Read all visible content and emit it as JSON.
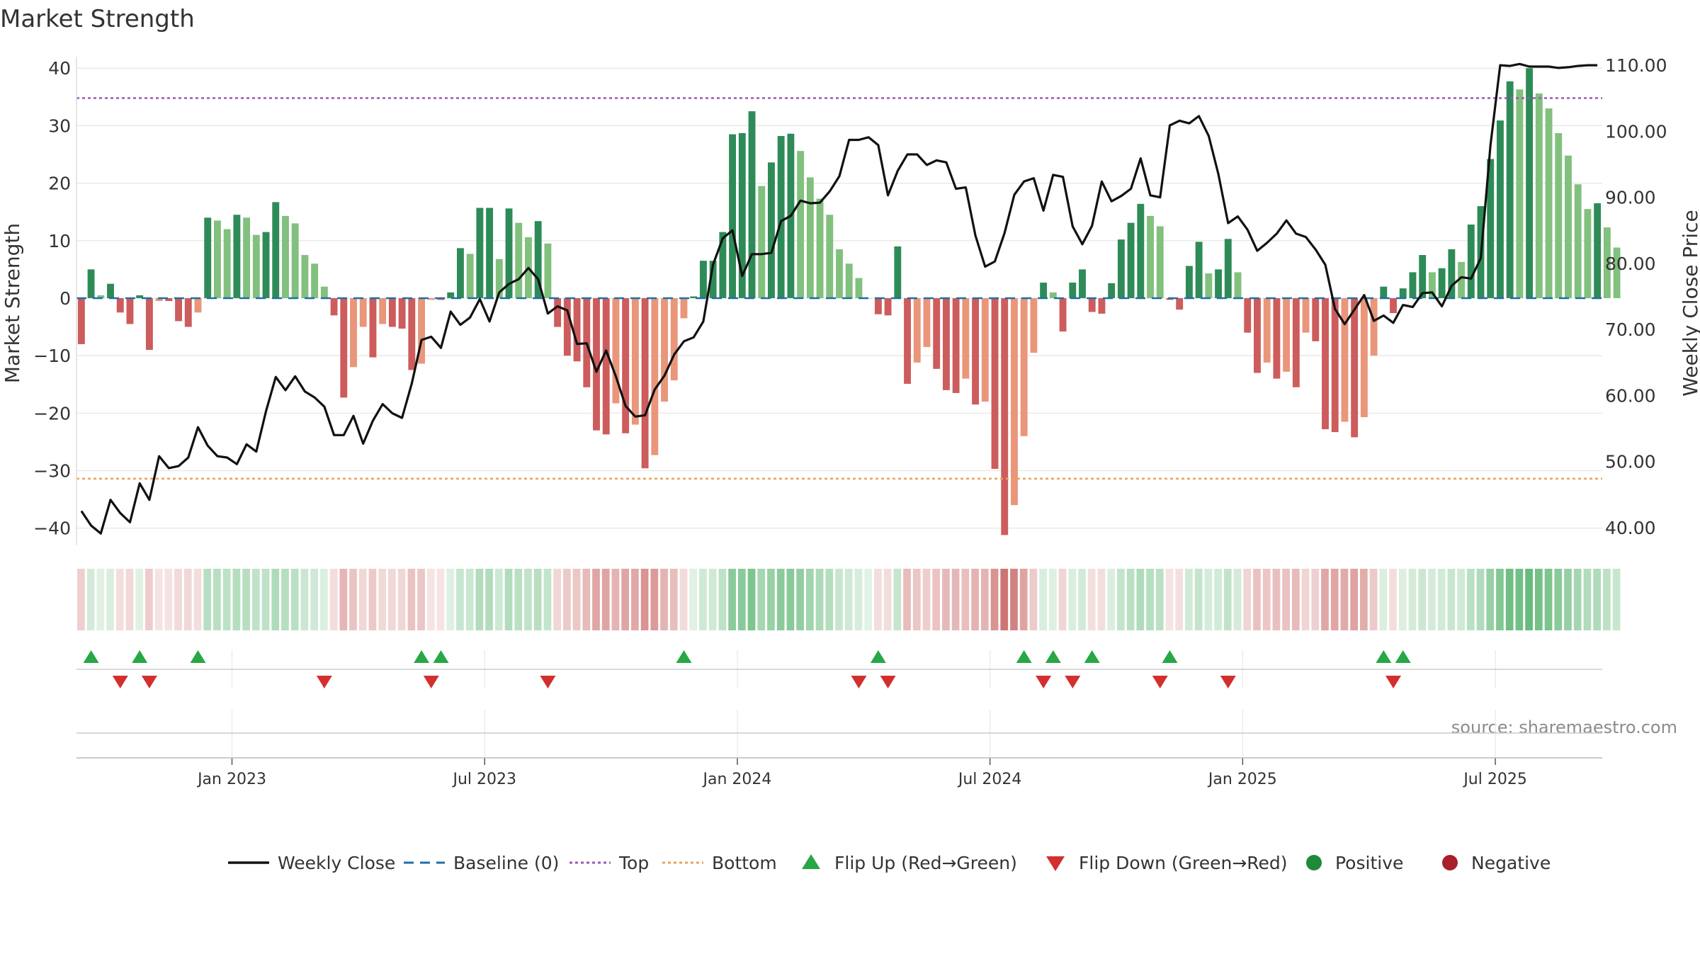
{
  "chart_data": {
    "type": "bar",
    "title": "Market Strength",
    "ylabel": "Market Strength",
    "y2label": "Weekly Close Price",
    "ylim": [
      -43,
      42
    ],
    "y2lim": [
      37.3,
      111.3
    ],
    "y_ticks": [
      40,
      30,
      20,
      10,
      0,
      -10,
      -20,
      -30,
      -40
    ],
    "y_tick_labels": [
      "40",
      "30",
      "20",
      "10",
      "0",
      "−10",
      "−20",
      "−30",
      "−40"
    ],
    "y2_ticks": [
      110,
      100,
      90,
      80,
      70,
      60,
      50,
      40
    ],
    "y2_tick_labels": [
      "110.00",
      "100.00",
      "90.00",
      "80.00",
      "70.00",
      "60.00",
      "50.00",
      "40.00"
    ],
    "x_tick_labels": [
      "Jan 2023",
      "Jul 2023",
      "Jan 2024",
      "Jul 2024",
      "Jan 2025",
      "Jul 2025"
    ],
    "x_tick_weeks": [
      16,
      42,
      68,
      94,
      120,
      146
    ],
    "top_threshold": 34.8,
    "bottom_threshold": -31.4,
    "week_count": 157,
    "strength_values": [
      -8,
      5,
      0.5,
      2.5,
      -2.5,
      -4.5,
      0.5,
      -9,
      -0.5,
      -0.5,
      -4,
      -5,
      -2.5,
      14,
      13.5,
      12,
      14.5,
      14,
      11,
      11.5,
      16.7,
      14.3,
      13,
      7.5,
      6,
      2,
      -3,
      -17.3,
      -12,
      -5,
      -10.3,
      -4.5,
      -5,
      -5.3,
      -12.5,
      -11.4,
      -0.3,
      -0.3,
      1,
      8.7,
      7.7,
      15.7,
      15.7,
      6.8,
      15.6,
      13.1,
      10.6,
      13.4,
      9.5,
      -5,
      -10,
      -11,
      -15.5,
      -23,
      -23.7,
      -18.3,
      -23.5,
      -22,
      -29.6,
      -27.3,
      -18,
      -14.3,
      -3.5,
      0.3,
      6.5,
      6.5,
      11.5,
      28.5,
      28.7,
      32.5,
      19.5,
      23.6,
      28.2,
      28.6,
      25.6,
      21,
      17.3,
      14.5,
      8.5,
      6,
      3.5,
      0,
      -2.8,
      -3,
      9,
      -14.9,
      -11.2,
      -8.5,
      -12.3,
      -16,
      -16.5,
      -14,
      -18.5,
      -18,
      -29.7,
      -41.2,
      -36,
      -24,
      -9.5,
      2.7,
      1,
      -5.8,
      2.7,
      5,
      -2.4,
      -2.7,
      2.6,
      10.2,
      13.1,
      16.4,
      14.3,
      12.5,
      -0.3,
      -2,
      5.6,
      9.8,
      4.3,
      5,
      10.3,
      4.5,
      -6,
      -13,
      -11.2,
      -14,
      -12.8,
      -15.5,
      -6,
      -7.5,
      -22.8,
      -23.3,
      -21.5,
      -24.2,
      -20.7,
      -10,
      2,
      -2.6,
      1.7,
      4.5,
      7.5,
      4.5,
      5.2,
      8.5,
      6.3,
      12.8,
      16,
      24.2,
      30.9,
      37.7,
      36.3,
      40,
      35.6,
      33,
      28.7,
      24.8,
      19.8,
      15.5,
      16.5,
      12.3,
      8.8
    ],
    "heat_strip_note": "per-week strength heat strip (same series as strength_values)",
    "close_values": [
      42.5,
      40.3,
      39.1,
      44.2,
      42.2,
      40.8,
      46.7,
      44.2,
      50.8,
      49,
      49.3,
      50.6,
      55.2,
      52.4,
      50.8,
      50.6,
      49.6,
      52.6,
      51.5,
      57.6,
      62.8,
      60.8,
      62.9,
      60.6,
      59.7,
      58.3,
      54,
      54,
      56.9,
      52.7,
      56.2,
      58.7,
      57.3,
      56.6,
      61.8,
      68.4,
      68.9,
      67.2,
      72.7,
      70.7,
      71.8,
      74.6,
      71.2,
      75.6,
      76.9,
      77.6,
      79.3,
      77.6,
      72.4,
      73.5,
      72.9,
      67.8,
      67.9,
      63.6,
      66.8,
      62.9,
      58.4,
      56.8,
      57,
      60.9,
      63,
      66.2,
      68.2,
      68.8,
      71.2,
      79.8,
      83.8,
      85,
      78.1,
      81.4,
      81.4,
      81.6,
      86.4,
      87.2,
      89.5,
      89.1,
      89.2,
      90.9,
      93.2,
      98.7,
      98.7,
      99.1,
      97.9,
      90.3,
      94,
      96.5,
      96.5,
      94.9,
      95.6,
      95.3,
      91.3,
      91.5,
      84.2,
      79.5,
      80.3,
      84.6,
      90.4,
      92.4,
      92.9,
      88,
      93.4,
      93.1,
      85.6,
      82.9,
      85.7,
      92.4,
      89.4,
      90.2,
      91.3,
      95.9,
      90.3,
      90,
      100.9,
      101.6,
      101.2,
      102.3,
      99.3,
      93.5,
      86.1,
      87.1,
      85.1,
      81.9,
      83.1,
      84.5,
      86.5,
      84.5,
      84,
      82.1,
      79.8,
      73.1,
      70.8,
      73,
      75.2,
      71.3,
      72.1,
      71,
      73.7,
      73.4,
      75.5,
      75.6,
      73.5,
      76.6,
      77.9,
      77.7,
      80.8,
      97.9,
      110,
      109.9,
      110.2,
      109.8,
      109.8,
      109.8,
      109.6,
      109.7,
      109.9,
      110,
      110
    ],
    "flip_up_weeks": [
      1,
      6,
      12,
      35,
      37,
      62,
      82,
      97,
      100,
      104,
      112,
      134,
      136
    ],
    "flip_down_weeks": [
      4,
      7,
      25,
      36,
      48,
      80,
      83,
      99,
      102,
      111,
      118,
      135
    ],
    "annotations": [
      "source: sharemaestro.com"
    ],
    "legend_position": "bottom-center",
    "legend": [
      {
        "label": "Weekly Close",
        "kind": "line-solid",
        "color": "#111111"
      },
      {
        "label": "Baseline (0)",
        "kind": "line-dashed",
        "color": "#1f6fa8"
      },
      {
        "label": "Top",
        "kind": "line-dotted",
        "color": "#9b59b6"
      },
      {
        "label": "Bottom",
        "kind": "line-dotted",
        "color": "#e8a35a"
      },
      {
        "label": "Flip Up (Red→Green)",
        "kind": "triangle-up",
        "color": "#28a745"
      },
      {
        "label": "Flip Down (Green→Red)",
        "kind": "triangle-down",
        "color": "#d32f2f"
      },
      {
        "label": "Positive",
        "kind": "circle",
        "color": "#1e8a3a"
      },
      {
        "label": "Negative",
        "kind": "circle",
        "color": "#a91e2a"
      }
    ]
  },
  "colors": {
    "positive_strong": "#2e8b57",
    "positive_light": "#82c07e",
    "negative_strong": "#cd5c5c",
    "negative_light": "#e9967a",
    "close_line": "#111111",
    "baseline": "#1f6fa8",
    "top_line": "#9b59b6",
    "bottom_line": "#e8a35a",
    "grid": "#e6e6e6",
    "source_text": "#8c8c8c"
  }
}
